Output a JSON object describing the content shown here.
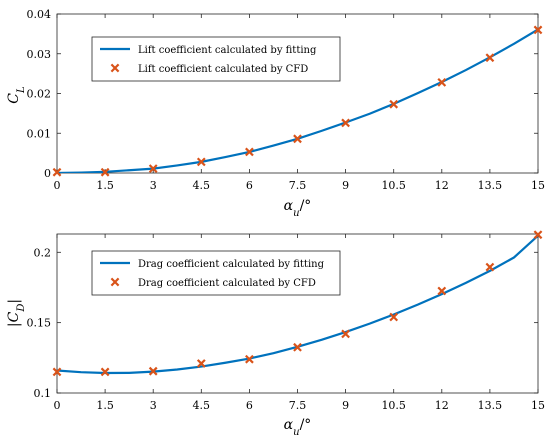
{
  "chart_data": [
    {
      "type": "line",
      "xlabel": "αu/°",
      "ylabel": "CL",
      "xlim": [
        0,
        15
      ],
      "ylim": [
        0,
        0.04
      ],
      "xticks": [
        0,
        1.5,
        3,
        4.5,
        6,
        7.5,
        9,
        10.5,
        12,
        13.5,
        15
      ],
      "yticks": [
        0,
        0.01,
        0.02,
        0.03,
        0.04
      ],
      "xtick_labels": [
        "0",
        "1.5",
        "3",
        "4.5",
        "6",
        "7.5",
        "9",
        "10.5",
        "12",
        "13.5",
        "15"
      ],
      "ytick_labels": [
        "0",
        "0.01",
        "0.02",
        "0.03",
        "0.04"
      ],
      "grid": false,
      "legend_position": "top-left",
      "series": [
        {
          "name": "Lift coefficient calculated by fitting",
          "type": "line",
          "color": "#0072BD",
          "x": [
            0,
            0.75,
            1.5,
            2.25,
            3,
            3.75,
            4.5,
            5.25,
            6,
            6.75,
            7.5,
            8.25,
            9,
            9.75,
            10.5,
            11.25,
            12,
            12.75,
            13.5,
            14.25,
            15
          ],
          "y": [
            0,
            0.0001,
            0.0003,
            0.0007,
            0.0011,
            0.0019,
            0.0028,
            0.004,
            0.0053,
            0.0069,
            0.0086,
            0.0106,
            0.0127,
            0.0149,
            0.0174,
            0.0201,
            0.0229,
            0.0259,
            0.0291,
            0.0325,
            0.0361
          ]
        },
        {
          "name": "Lift coefficient calculated by CFD",
          "type": "scatter",
          "marker": "x",
          "color": "#D95319",
          "x": [
            0,
            1.5,
            3,
            4.5,
            6,
            7.5,
            9,
            10.5,
            12,
            13.5,
            15
          ],
          "y": [
            0.0002,
            0.0002,
            0.0011,
            0.0028,
            0.0053,
            0.0086,
            0.0126,
            0.0173,
            0.0228,
            0.029,
            0.036
          ]
        }
      ]
    },
    {
      "type": "line",
      "xlabel": "αu/°",
      "ylabel": "|CD|",
      "xlim": [
        0,
        15
      ],
      "ylim": [
        0.1,
        0.213
      ],
      "xticks": [
        0,
        1.5,
        3,
        4.5,
        6,
        7.5,
        9,
        10.5,
        12,
        13.5,
        15
      ],
      "yticks": [
        0.1,
        0.15,
        0.2
      ],
      "xtick_labels": [
        "0",
        "1.5",
        "3",
        "4.5",
        "6",
        "7.5",
        "9",
        "10.5",
        "12",
        "13.5",
        "15"
      ],
      "ytick_labels": [
        "0.1",
        "0.15",
        "0.2"
      ],
      "grid": false,
      "legend_position": "top-left",
      "series": [
        {
          "name": "Drag coefficient calculated by fitting",
          "type": "line",
          "color": "#0072BD",
          "x": [
            0,
            0.75,
            1.5,
            2.25,
            3,
            3.75,
            4.5,
            5.25,
            6,
            6.75,
            7.5,
            8.25,
            9,
            9.75,
            10.5,
            11.25,
            12,
            12.75,
            13.5,
            14.25,
            15
          ],
          "y": [
            0.116,
            0.1148,
            0.1142,
            0.1143,
            0.1152,
            0.1167,
            0.1188,
            0.1215,
            0.1245,
            0.1283,
            0.1328,
            0.1378,
            0.1433,
            0.1493,
            0.1558,
            0.1628,
            0.1703,
            0.1783,
            0.1868,
            0.1963,
            0.2118
          ]
        },
        {
          "name": "Drag coefficient calculated by CFD",
          "type": "scatter",
          "marker": "x",
          "color": "#D95319",
          "x": [
            0,
            1.5,
            3,
            4.5,
            6,
            7.5,
            9,
            10.5,
            12,
            13.5,
            15
          ],
          "y": [
            0.115,
            0.115,
            0.1155,
            0.121,
            0.124,
            0.1325,
            0.142,
            0.154,
            0.1725,
            0.1895,
            0.2125
          ]
        }
      ]
    }
  ]
}
